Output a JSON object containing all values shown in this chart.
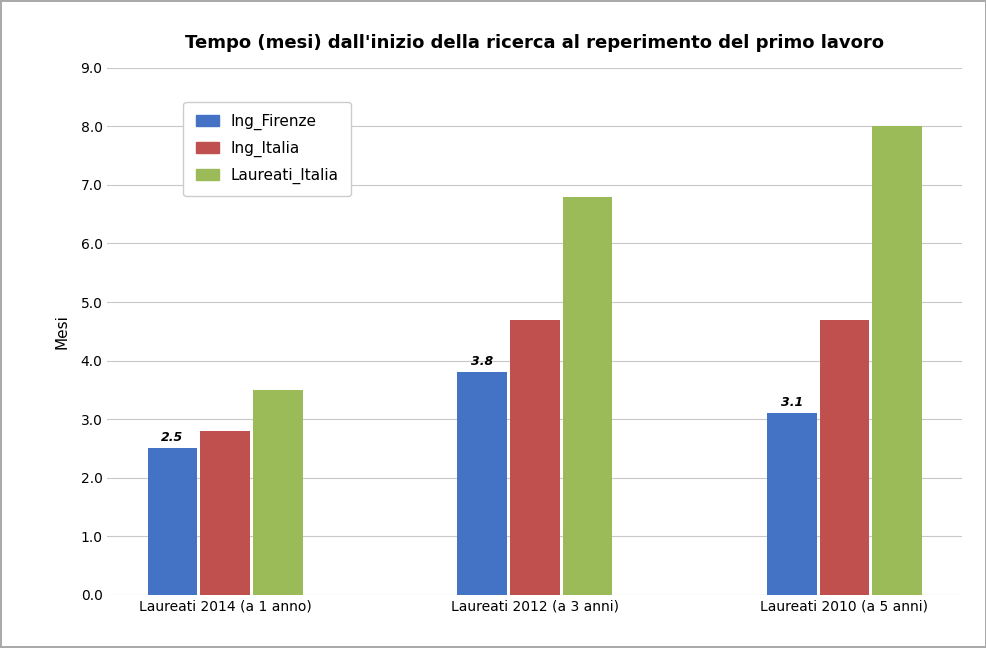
{
  "title": "Tempo (mesi) dall'inizio della ricerca al reperimento del primo lavoro",
  "ylabel": "Mesi",
  "categories": [
    "Laureati 2014 (a 1 anno)",
    "Laureati 2012 (a 3 anni)",
    "Laureati 2010 (a 5 anni)"
  ],
  "series": {
    "Ing_Firenze": [
      2.5,
      3.8,
      3.1
    ],
    "Ing_Italia": [
      2.8,
      4.7,
      4.7
    ],
    "Laureati_Italia": [
      3.5,
      6.8,
      8.0
    ]
  },
  "colors": {
    "Ing_Firenze": "#4472C4",
    "Ing_Italia": "#C0504D",
    "Laureati_Italia": "#9BBB59"
  },
  "annotated_series": "Ing_Firenze",
  "annotations": [
    "2.5",
    "3.8",
    "3.1"
  ],
  "ylim": [
    0,
    9.0
  ],
  "yticks": [
    0.0,
    1.0,
    2.0,
    3.0,
    4.0,
    5.0,
    6.0,
    7.0,
    8.0,
    9.0
  ],
  "bar_width": 0.16,
  "bar_gap": 0.01,
  "background_color": "#FFFFFF",
  "plot_bg_color": "#FFFFFF",
  "grid_color": "#C8C8C8",
  "title_fontsize": 13,
  "axis_label_fontsize": 11,
  "tick_fontsize": 10,
  "legend_fontsize": 11,
  "annotation_fontsize": 9,
  "outer_border_color": "#AAAAAA"
}
